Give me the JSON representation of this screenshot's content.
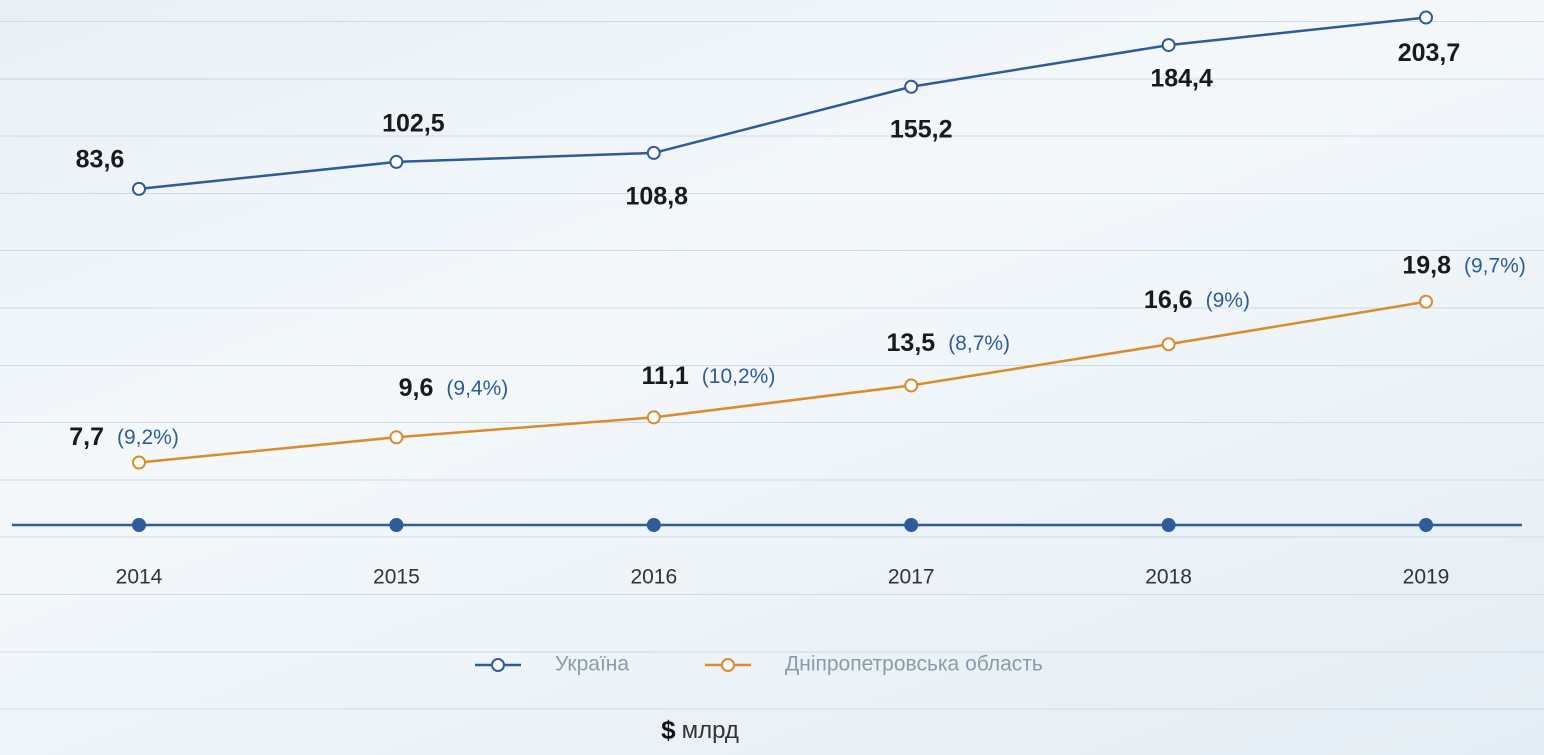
{
  "chart_data": {
    "type": "line",
    "categories": [
      "2014",
      "2015",
      "2016",
      "2017",
      "2018",
      "2019"
    ],
    "ylim": [
      -152,
      216
    ],
    "y2lim": [
      3,
      42.5
    ],
    "series": [
      {
        "name": "Україна",
        "color": "#2e5b9a",
        "values": [
          83.6,
          102.5,
          108.8,
          155.2,
          184.4,
          203.7
        ],
        "value_labels": [
          "83,6",
          "102,5",
          "108,8",
          "155,2",
          "184,4",
          "203,7"
        ]
      },
      {
        "name": "Дніпропетровська область",
        "color": "#d98c2b",
        "axis": "y2",
        "values": [
          7.7,
          9.6,
          11.1,
          13.5,
          16.6,
          19.8
        ],
        "value_labels": [
          "7,7",
          "9,6",
          "11,1",
          "13,5",
          "16,6",
          "19,8"
        ],
        "share_labels": [
          "(9,2%)",
          "(9,4%)",
          "(10,2%)",
          "(8,7%)",
          "(9%)",
          "(9,7%)"
        ]
      }
    ],
    "unit_symbol": "$",
    "unit": "млрд"
  }
}
